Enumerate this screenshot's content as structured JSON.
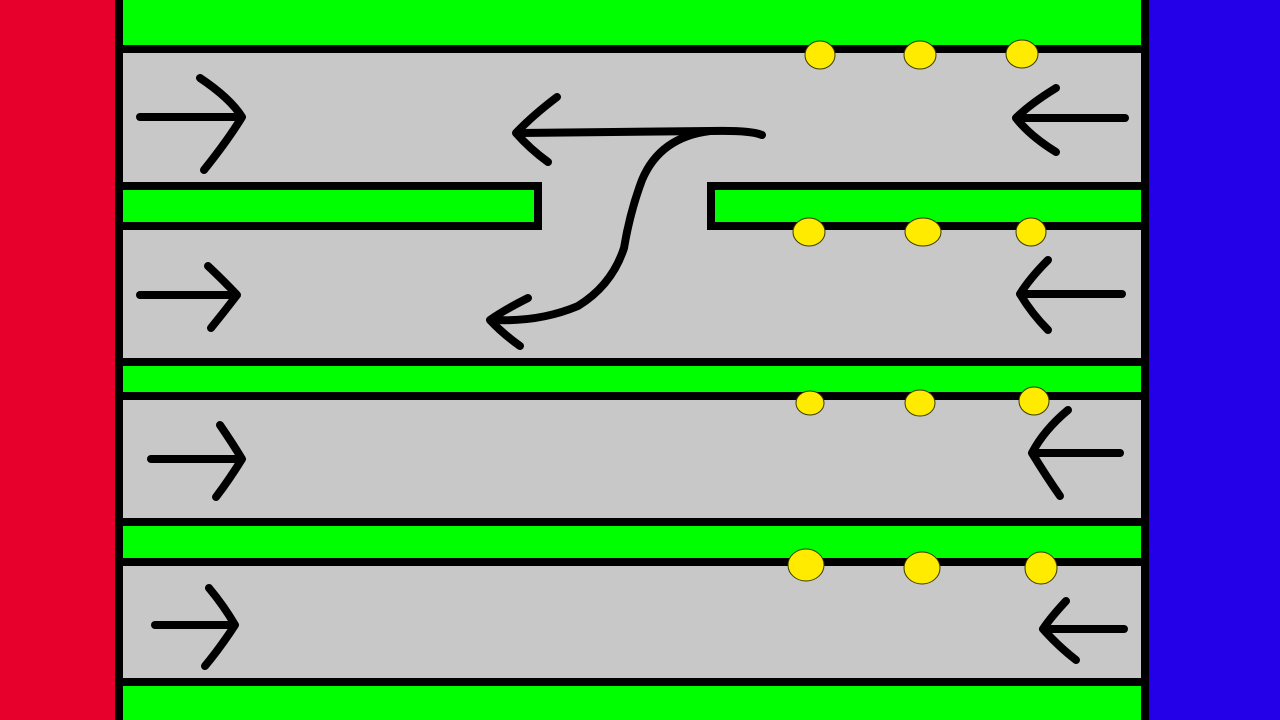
{
  "colors": {
    "red_base": "#E8002C",
    "blue_base": "#2400E8",
    "grass": "#00FF00",
    "road": "#C8C8C8",
    "border": "#000000",
    "unit": "#FFEB00",
    "unit_outline": "#3A3A00"
  },
  "board": {
    "left_base": "red-base",
    "right_base": "blue-base",
    "lane_count": 4,
    "gap_between_lane_1_and_2": true,
    "units_per_lane_side": 3
  },
  "lanes": [
    {
      "id": "lane-1",
      "direction_left_side": "right",
      "direction_right_side": "left"
    },
    {
      "id": "lane-2",
      "direction_left_side": "right",
      "direction_right_side": "left"
    },
    {
      "id": "lane-3",
      "direction_left_side": "right",
      "direction_right_side": "left"
    },
    {
      "id": "lane-4",
      "direction_left_side": "right",
      "direction_right_side": "left"
    }
  ],
  "icons": {
    "arrow_right": "arrow-right-icon",
    "arrow_left": "arrow-left-icon",
    "lane_switch": "lane-switch-arrow-icon",
    "unit": "unit-token-icon"
  }
}
